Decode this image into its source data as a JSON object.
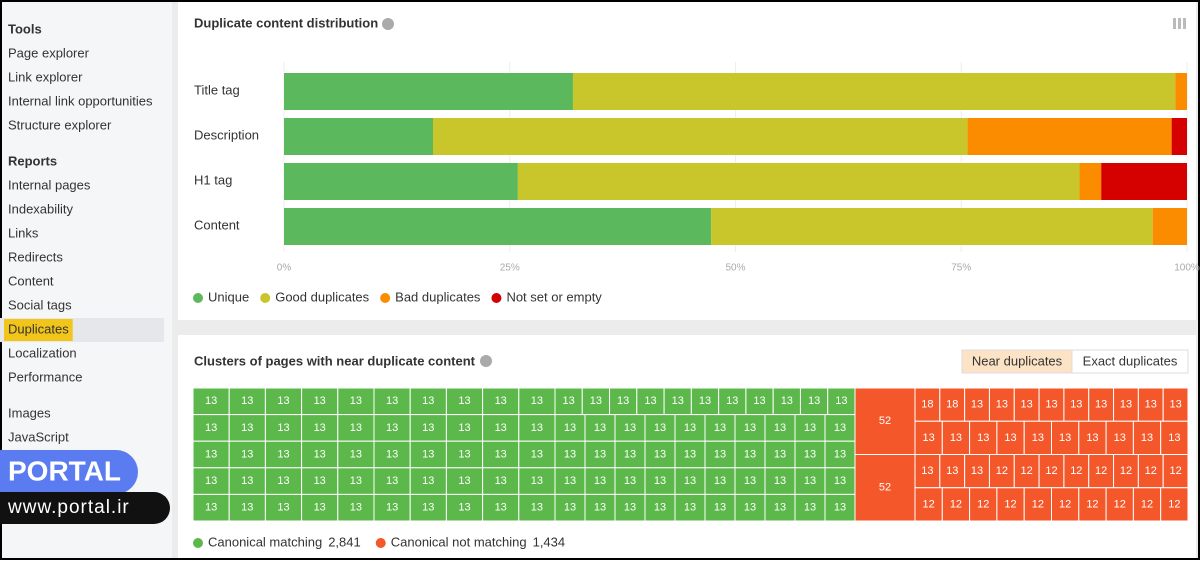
{
  "sidebar": {
    "groups": [
      {
        "heading": "Tools",
        "items": [
          "Page explorer",
          "Link explorer",
          "Internal link opportunities",
          "Structure explorer"
        ]
      },
      {
        "heading": "Reports",
        "items": [
          "Internal pages",
          "Indexability",
          "Links",
          "Redirects",
          "Content",
          "Social tags",
          "Duplicates",
          "Localization",
          "Performance"
        ]
      },
      {
        "items": [
          "Images",
          "JavaScript"
        ]
      }
    ],
    "active": {
      "group": 1,
      "item": 6
    }
  },
  "watermark": {
    "brand": "PORTAL",
    "url": "www.portal.ir"
  },
  "chart_data": {
    "type": "stacked-bar-horizontal",
    "title": "Duplicate content distribution",
    "categories": [
      "Title tag",
      "Description",
      "H1 tag",
      "Content"
    ],
    "series": [
      {
        "name": "Unique",
        "color": "#5cb85c",
        "values": [
          32,
          16.5,
          25.9,
          47.3
        ]
      },
      {
        "name": "Good duplicates",
        "color": "#c8c62a",
        "values": [
          66.7,
          59.2,
          62.2,
          48.9
        ]
      },
      {
        "name": "Bad duplicates",
        "color": "#fb8c00",
        "values": [
          1.3,
          22.6,
          2.4,
          3.8
        ]
      },
      {
        "name": "Not set or empty",
        "color": "#d50000",
        "values": [
          0,
          1.7,
          9.5,
          0
        ]
      }
    ],
    "xlim": [
      0,
      100
    ],
    "xticks": [
      {
        "value": 0,
        "label": "0%"
      },
      {
        "value": 25,
        "label": "25%"
      },
      {
        "value": 50,
        "label": "50%"
      },
      {
        "value": 75,
        "label": "75%"
      },
      {
        "value": 100,
        "label": "100%"
      }
    ],
    "grid": true,
    "legend": "bottom-left"
  },
  "treemap": {
    "title": "Clusters of pages with near duplicate content",
    "toggle": [
      "Near duplicates",
      "Exact duplicates"
    ],
    "toggle_active": 0,
    "legend": [
      {
        "name": "Canonical matching",
        "color": "#5db84b",
        "value": 2841,
        "value_label": "2,841"
      },
      {
        "name": "Canonical not matching",
        "color": "#f4572a",
        "value": 1434,
        "value_label": "1,434"
      }
    ],
    "sections": [
      {
        "group": 0,
        "rows": [
          [
            13,
            13,
            13,
            13,
            13,
            13,
            13,
            13,
            13,
            13
          ],
          [
            13,
            13,
            13,
            13,
            13,
            13,
            13,
            13,
            13,
            13
          ],
          [
            13,
            13,
            13,
            13,
            13,
            13,
            13,
            13,
            13,
            13
          ],
          [
            13,
            13,
            13,
            13,
            13,
            13,
            13,
            13,
            13,
            13
          ],
          [
            13,
            13,
            13,
            13,
            13,
            13,
            13,
            13,
            13,
            13
          ]
        ]
      },
      {
        "group": 0,
        "rows": [
          [
            13,
            13,
            13,
            13,
            13,
            13,
            13,
            13,
            13,
            13,
            13
          ],
          [
            13,
            13,
            13,
            13,
            13,
            13,
            13,
            13,
            13,
            13
          ],
          [
            13,
            13,
            13,
            13,
            13,
            13,
            13,
            13,
            13,
            13
          ],
          [
            13,
            13,
            13,
            13,
            13,
            13,
            13,
            13,
            13,
            13
          ],
          [
            13,
            13,
            13,
            13,
            13,
            13,
            13,
            13,
            13,
            13
          ]
        ]
      },
      {
        "group": 1,
        "rows": [
          [
            52
          ],
          [
            52
          ]
        ]
      },
      {
        "group": 1,
        "rows": [
          [
            18,
            18,
            13,
            13,
            13,
            13,
            13,
            13,
            13,
            13,
            13
          ],
          [
            13,
            13,
            13,
            13,
            13,
            13,
            13,
            13,
            13,
            13
          ],
          [
            13,
            13,
            13,
            12,
            12,
            12,
            12,
            12,
            12,
            12,
            12
          ],
          [
            12,
            12,
            12,
            12,
            12,
            12,
            12,
            12,
            12,
            12
          ]
        ]
      }
    ]
  }
}
